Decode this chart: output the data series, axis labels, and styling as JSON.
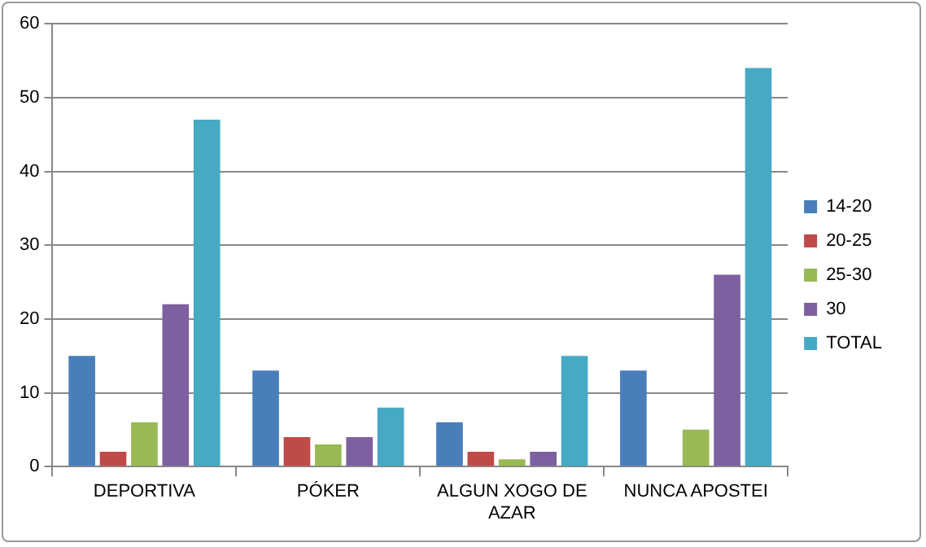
{
  "chart_data": {
    "type": "bar",
    "categories": [
      "DEPORTIVA",
      "PÓKER",
      "ALGUN XOGO DE AZAR",
      "NUNCA APOSTEI"
    ],
    "series": [
      {
        "name": "14-20",
        "color": "#4a7ebb",
        "values": [
          15,
          13,
          6,
          13
        ]
      },
      {
        "name": "20-25",
        "color": "#be4b48",
        "values": [
          2,
          4,
          2,
          0
        ]
      },
      {
        "name": "25-30",
        "color": "#98b954",
        "values": [
          6,
          3,
          1,
          5
        ]
      },
      {
        "name": "30",
        "color": "#7d60a0",
        "values": [
          22,
          4,
          2,
          26
        ]
      },
      {
        "name": "TOTAL",
        "color": "#46aac5",
        "values": [
          47,
          8,
          15,
          54
        ]
      }
    ],
    "ylim": [
      0,
      60
    ],
    "yticks": [
      0,
      10,
      20,
      30,
      40,
      50,
      60
    ],
    "grid": "y",
    "legend": "right"
  }
}
